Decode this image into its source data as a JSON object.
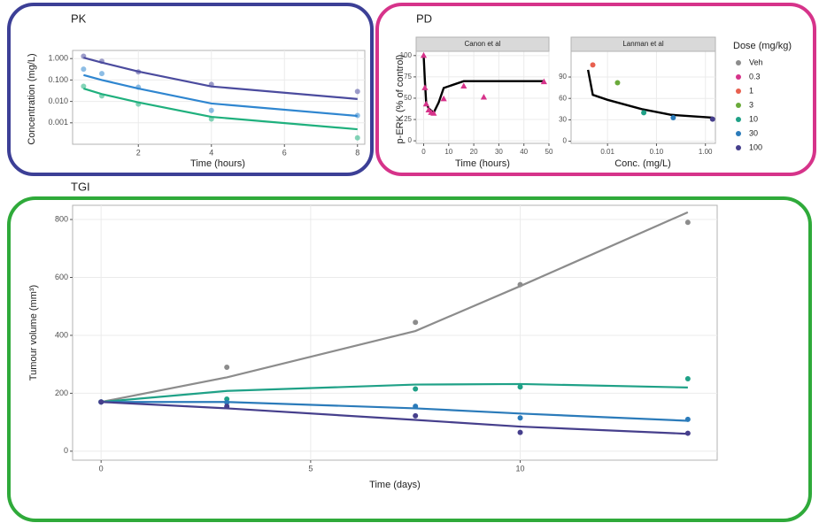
{
  "chart_data": [
    {
      "type": "line",
      "title": "PK",
      "xlabel": "Time (hours)",
      "ylabel": "Concentration (mg/L)",
      "log_y": true,
      "grid": true,
      "xlim": [
        0.2,
        8.2
      ],
      "xticks": [
        2,
        4,
        6,
        8
      ],
      "ylim": [
        0.0001,
        2.4
      ],
      "yticks": [
        0.001,
        {
          "value": 0.01,
          "label": "0.010"
        },
        {
          "value": 0.1,
          "label": "0.100"
        },
        {
          "value": 1,
          "label": "1.000"
        }
      ],
      "x": [
        0.5,
        1,
        2,
        4,
        8
      ],
      "series": [
        {
          "color": "#4b4b9e",
          "values": [
            1.3,
            0.75,
            0.24,
            0.062,
            0.029
          ],
          "fitted": [
            1.1,
            0.65,
            0.25,
            0.05,
            0.013
          ]
        },
        {
          "color": "#2f86d0",
          "values": [
            0.32,
            0.2,
            0.046,
            0.0038,
            0.0022
          ],
          "fitted": [
            0.17,
            0.1,
            0.04,
            0.008,
            0.0021
          ]
        },
        {
          "color": "#1fb07d",
          "values": [
            0.051,
            0.018,
            0.0075,
            0.0015,
            0.0002
          ],
          "fitted": [
            0.04,
            0.022,
            0.009,
            0.0019,
            0.0005
          ]
        }
      ]
    },
    {
      "type": "scatter",
      "title": "PD",
      "ylabel": "p-ERK (% of control)",
      "grid": true,
      "legend": {
        "title": "Dose (mg/kg)",
        "items": [
          {
            "name": "Veh",
            "color": "#8c8c8c"
          },
          {
            "name": "0.3",
            "color": "#d6338a"
          },
          {
            "name": "1",
            "color": "#e8604f"
          },
          {
            "name": "3",
            "color": "#6aaa3a"
          },
          {
            "name": "10",
            "color": "#1fa187"
          },
          {
            "name": "30",
            "color": "#2b7bba"
          },
          {
            "name": "100",
            "color": "#463f8c"
          }
        ]
      },
      "facets": [
        {
          "strip": "Canon et al",
          "xlabel": "Time (hours)",
          "marker": "triangle",
          "log_x": false,
          "xlim": [
            -3,
            50
          ],
          "xticks": [
            0,
            10,
            20,
            30,
            40,
            50
          ],
          "ylim": [
            -3,
            105
          ],
          "yticks": [
            0,
            25,
            50,
            75,
            100
          ],
          "x": [
            0,
            0.5,
            1,
            2,
            3,
            4,
            8,
            16,
            24,
            48
          ],
          "values": [
            100,
            62,
            43,
            36,
            33,
            32,
            49,
            64,
            51,
            69
          ],
          "colors": [
            "#d6338a",
            "#d6338a",
            "#d6338a",
            "#d6338a",
            "#d6338a",
            "#d6338a",
            "#d6338a",
            "#d6338a",
            "#d6338a",
            "#d6338a"
          ],
          "fit_x": [
            0,
            0.5,
            1,
            2,
            4,
            6,
            8,
            16,
            24,
            48
          ],
          "fit_values": [
            100,
            70,
            45,
            38,
            33,
            45,
            62,
            70,
            70,
            70
          ]
        },
        {
          "strip": "Lanman et al",
          "xlabel": "Conc. (mg/L)",
          "marker": "circle",
          "log_x": true,
          "xlim": [
            0.0018,
            1.6
          ],
          "xticks": [
            0.01,
            {
              "value": 0.1,
              "label": "0.10"
            },
            {
              "value": 1,
              "label": "1.00"
            }
          ],
          "ylim": [
            -3,
            126
          ],
          "yticks": [
            0,
            30,
            60,
            90
          ],
          "x": [
            0.005,
            0.016,
            0.055,
            0.22,
            1.4
          ],
          "values": [
            107,
            82,
            40,
            33,
            31
          ],
          "colors": [
            "#e8604f",
            "#6aaa3a",
            "#1fa187",
            "#2b7bba",
            "#463f8c"
          ],
          "fit_x": [
            0.004,
            0.005,
            0.01,
            0.05,
            0.2,
            1.4
          ],
          "fit_values": [
            100,
            65,
            58,
            45,
            37,
            33
          ]
        }
      ]
    },
    {
      "type": "line",
      "title": "TGI",
      "xlabel": "Time (days)",
      "ylabel": "Tumour volume (mm³)",
      "grid": true,
      "log_y": false,
      "xlim": [
        -0.68,
        14.7
      ],
      "xticks": [
        0,
        5,
        10
      ],
      "ylim": [
        -31,
        849
      ],
      "yticks": [
        0,
        200,
        400,
        600,
        800
      ],
      "x": [
        0,
        3,
        7.5,
        10,
        14
      ],
      "series": [
        {
          "color": "#8c8c8c",
          "values": [
            170,
            290,
            445,
            575,
            790
          ],
          "fitted": [
            170,
            255,
            415,
            570,
            825
          ]
        },
        {
          "color": "#1fa187",
          "values": [
            170,
            180,
            215,
            222,
            250
          ],
          "fitted": [
            170,
            208,
            230,
            232,
            220
          ]
        },
        {
          "color": "#2b7bba",
          "values": [
            170,
            168,
            155,
            115,
            110
          ],
          "fitted": [
            170,
            170,
            148,
            130,
            105
          ]
        },
        {
          "color": "#463f8c",
          "values": [
            170,
            155,
            122,
            65,
            62
          ],
          "fitted": [
            170,
            148,
            108,
            85,
            60
          ]
        }
      ]
    }
  ]
}
